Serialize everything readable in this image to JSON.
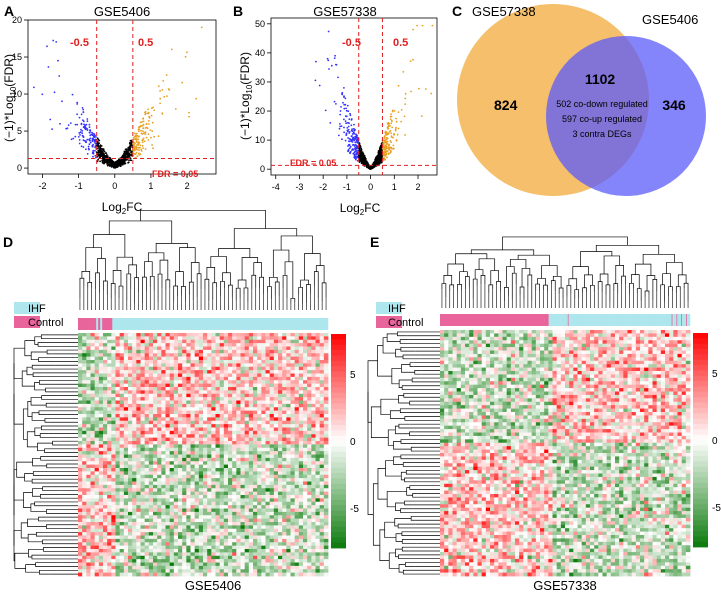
{
  "chart_data": [
    {
      "panel": "A",
      "type": "scatter",
      "title": "GSE5406",
      "xlabel": "Log2FC",
      "ylabel": "(-1)*Log10(FDR)",
      "xlim": [
        -2.4,
        2.8
      ],
      "ylim": [
        -0.8,
        20
      ],
      "xticks": [
        -2,
        -1,
        0,
        1,
        2
      ],
      "yticks": [
        0,
        5,
        10,
        15,
        20
      ],
      "fc_cutoffs": [
        -0.5,
        0.5
      ],
      "fdr_line_y": 1.3,
      "labels": {
        "neg": "-0.5",
        "pos": "0.5",
        "fdr": "FDR = 0.05"
      },
      "point_count": 900,
      "series": [
        {
          "name": "down-regulated",
          "color": "#3333ff"
        },
        {
          "name": "up-regulated",
          "color": "#e8a020"
        },
        {
          "name": "not significant",
          "color": "#000000"
        }
      ]
    },
    {
      "panel": "B",
      "type": "scatter",
      "title": "GSE57338",
      "xlabel": "Log2FC",
      "ylabel": "(-1)*Log10(FDR)",
      "xlim": [
        -4.2,
        2.8
      ],
      "ylim": [
        -2,
        52
      ],
      "xticks": [
        -4,
        -3,
        -2,
        -1,
        0,
        1,
        2
      ],
      "yticks": [
        0,
        10,
        20,
        30,
        40,
        50
      ],
      "fc_cutoffs": [
        -0.5,
        0.5
      ],
      "fdr_line_y": 1.3,
      "labels": {
        "neg": "-0.5",
        "pos": "0.5",
        "fdr": "FDR = 0.05"
      },
      "point_count": 1100,
      "series": [
        {
          "name": "down-regulated",
          "color": "#3333ff"
        },
        {
          "name": "up-regulated",
          "color": "#e8a020"
        },
        {
          "name": "not significant",
          "color": "#000000"
        }
      ]
    },
    {
      "panel": "C",
      "type": "venn",
      "sets": [
        {
          "name": "GSE57338",
          "only": 824,
          "color": "#f5b452"
        },
        {
          "name": "GSE5406",
          "only": 346,
          "color": "#5b5bfa"
        }
      ],
      "intersection": 1102,
      "intersection_notes": [
        "502 co-down regulated",
        "597 co-up regulated",
        "3 contra DEGs"
      ]
    },
    {
      "panel": "D",
      "type": "heatmap",
      "title": "GSE5406",
      "legend": [
        {
          "name": "IHF",
          "color": "#aee6ee"
        },
        {
          "name": "Control",
          "color": "#e8649a"
        }
      ],
      "color_scale": {
        "ticks": [
          5,
          0,
          -5
        ],
        "range": [
          -8,
          8
        ],
        "low": "#0a7a0a",
        "mid": "#ffffff",
        "high": "#ff0000"
      },
      "samples": 124,
      "control_samples": 17
    },
    {
      "panel": "E",
      "type": "heatmap",
      "title": "GSE57338",
      "legend": [
        {
          "name": "IHF",
          "color": "#aee6ee"
        },
        {
          "name": "Control",
          "color": "#e8649a"
        }
      ],
      "color_scale": {
        "ticks": [
          5,
          0,
          -5
        ],
        "range": [
          -8,
          8
        ],
        "low": "#0a7a0a",
        "mid": "#ffffff",
        "high": "#ff0000"
      },
      "samples": 313,
      "control_samples": 136
    }
  ]
}
